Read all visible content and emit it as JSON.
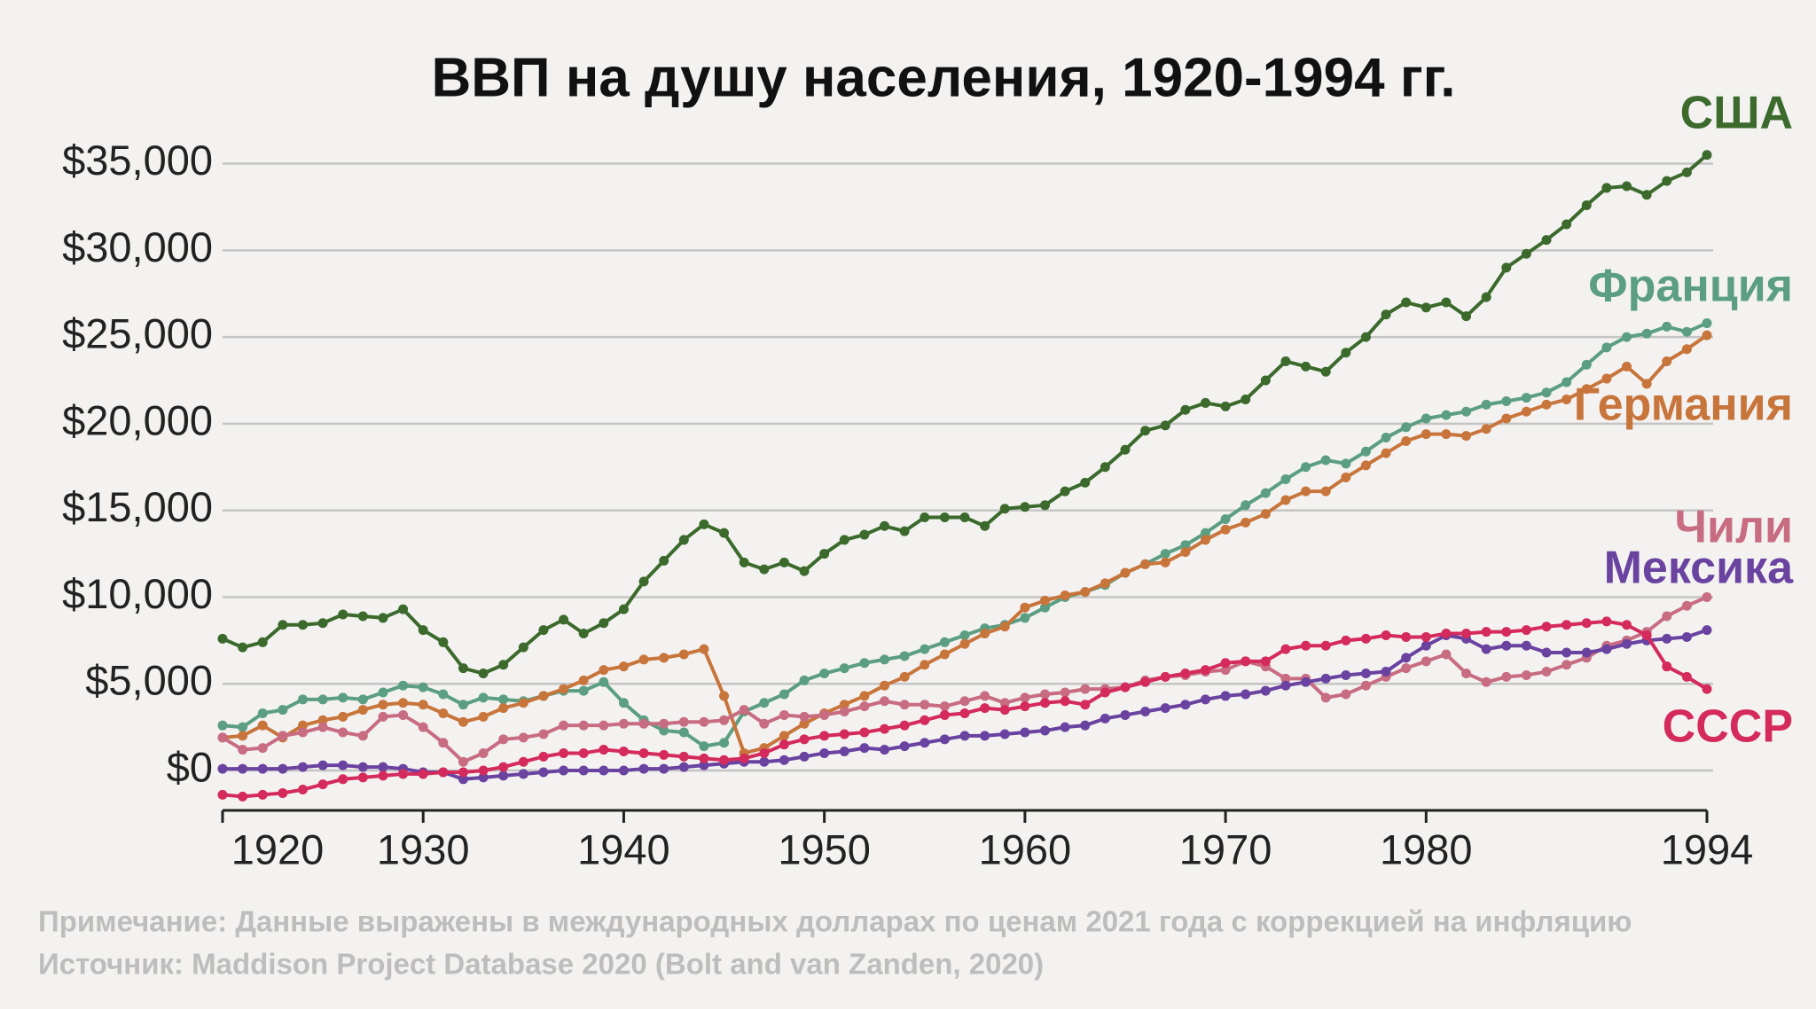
{
  "chart_data": {
    "type": "line",
    "title": "ВВП на душу населения, 1920-1994 гг.",
    "note": "Примечание: Данные выражены в международных долларах по ценам 2021 года с коррекцией на инфляцию",
    "source": "Источник: Maddison Project Database 2020 (Bolt and van Zanden, 2020)",
    "x": [
      1920,
      1921,
      1922,
      1923,
      1924,
      1925,
      1926,
      1927,
      1928,
      1929,
      1930,
      1931,
      1932,
      1933,
      1934,
      1935,
      1936,
      1937,
      1938,
      1939,
      1940,
      1941,
      1942,
      1943,
      1944,
      1945,
      1946,
      1947,
      1948,
      1949,
      1950,
      1951,
      1952,
      1953,
      1954,
      1955,
      1956,
      1957,
      1958,
      1959,
      1960,
      1961,
      1962,
      1963,
      1964,
      1965,
      1966,
      1967,
      1968,
      1969,
      1970,
      1971,
      1972,
      1973,
      1974,
      1975,
      1976,
      1977,
      1978,
      1979,
      1980,
      1981,
      1982,
      1983,
      1984,
      1985,
      1986,
      1987,
      1988,
      1989,
      1990,
      1991,
      1992,
      1993,
      1994
    ],
    "xlim": [
      1920,
      1994
    ],
    "xticks": [
      1920,
      1930,
      1940,
      1950,
      1960,
      1970,
      1980,
      1994
    ],
    "ylim": [
      -2300,
      36000
    ],
    "yticks": [
      {
        "value": 0,
        "label": "$0"
      },
      {
        "value": 5000,
        "label": "$5,000"
      },
      {
        "value": 10000,
        "label": "$10,000"
      },
      {
        "value": 15000,
        "label": "$15,000"
      },
      {
        "value": 20000,
        "label": "$20,000"
      },
      {
        "value": 25000,
        "label": "$25,000"
      },
      {
        "value": 30000,
        "label": "$30,000"
      },
      {
        "value": 35000,
        "label": "$35,000"
      }
    ],
    "grid": true,
    "series": [
      {
        "name": "США",
        "color": "#3b6a2c",
        "values": [
          7600,
          7100,
          7400,
          8400,
          8400,
          8500,
          9000,
          8900,
          8800,
          9300,
          8100,
          7400,
          5900,
          5600,
          6100,
          7100,
          8100,
          8700,
          7900,
          8500,
          9300,
          10900,
          12100,
          13300,
          14200,
          13700,
          12000,
          11600,
          12000,
          11500,
          12500,
          13300,
          13600,
          14100,
          13800,
          14600,
          14600,
          14600,
          14100,
          15100,
          15200,
          15300,
          16100,
          16600,
          17500,
          18500,
          19600,
          19900,
          20800,
          21200,
          21000,
          21400,
          22500,
          23600,
          23300,
          23000,
          24100,
          25000,
          26300,
          27000,
          26700,
          27000,
          26200,
          27300,
          29000,
          29800,
          30600,
          31500,
          32600,
          33600,
          33700,
          33200,
          34000,
          34500,
          35500
        ]
      },
      {
        "name": "Франция",
        "color": "#5b9e82",
        "values": [
          2600,
          2500,
          3300,
          3500,
          4100,
          4100,
          4200,
          4100,
          4500,
          4900,
          4800,
          4400,
          3800,
          4200,
          4100,
          4000,
          4300,
          4600,
          4600,
          5100,
          3900,
          2900,
          2300,
          2200,
          1400,
          1600,
          3400,
          3900,
          4400,
          5200,
          5600,
          5900,
          6200,
          6400,
          6600,
          7000,
          7400,
          7800,
          8200,
          8400,
          8800,
          9400,
          10000,
          10300,
          10700,
          11400,
          11900,
          12500,
          13000,
          13700,
          14500,
          15300,
          16000,
          16800,
          17500,
          17900,
          17700,
          18400,
          19200,
          19800,
          20300,
          20500,
          20700,
          21100,
          21300,
          21500,
          21800,
          22400,
          23400,
          24400,
          25000,
          25200,
          25600,
          25300,
          25800
        ]
      },
      {
        "name": "Германия",
        "color": "#c8753c",
        "values": [
          1900,
          2000,
          2600,
          1900,
          2600,
          2900,
          3100,
          3500,
          3800,
          3900,
          3800,
          3300,
          2800,
          3100,
          3600,
          3900,
          4300,
          4700,
          5200,
          5800,
          6000,
          6400,
          6500,
          6700,
          7000,
          4300,
          1000,
          1300,
          2000,
          2700,
          3300,
          3800,
          4300,
          4900,
          5400,
          6100,
          6700,
          7300,
          7900,
          8300,
          9400,
          9800,
          10100,
          10300,
          10800,
          11400,
          11900,
          12000,
          12600,
          13300,
          13900,
          14300,
          14800,
          15600,
          16100,
          16100,
          16900,
          17600,
          18300,
          19000,
          19400,
          19400,
          19300,
          19700,
          20300,
          20700,
          21100,
          21400,
          22000,
          22600,
          23300,
          22300,
          23600,
          24300,
          25100
        ]
      },
      {
        "name": "Чили",
        "color": "#c86c82",
        "values": [
          1900,
          1200,
          1300,
          2000,
          2200,
          2500,
          2200,
          2000,
          3100,
          3200,
          2500,
          1600,
          500,
          1000,
          1800,
          1900,
          2100,
          2600,
          2600,
          2600,
          2700,
          2700,
          2700,
          2800,
          2800,
          2900,
          3500,
          2700,
          3200,
          3100,
          3200,
          3400,
          3700,
          4000,
          3800,
          3800,
          3700,
          4000,
          4300,
          3900,
          4200,
          4400,
          4500,
          4700,
          4700,
          4800,
          5200,
          5400,
          5500,
          5700,
          5800,
          6300,
          6000,
          5300,
          5300,
          4200,
          4400,
          4900,
          5400,
          5900,
          6300,
          6700,
          5600,
          5100,
          5400,
          5500,
          5700,
          6100,
          6500,
          7200,
          7500,
          8000,
          8900,
          9500,
          10000
        ]
      },
      {
        "name": "Мексика",
        "color": "#6a42a0",
        "values": [
          100,
          100,
          100,
          100,
          200,
          300,
          300,
          200,
          200,
          100,
          -100,
          -100,
          -500,
          -400,
          -300,
          -200,
          -100,
          0,
          0,
          0,
          0,
          100,
          100,
          200,
          300,
          400,
          500,
          500,
          600,
          800,
          1000,
          1100,
          1300,
          1200,
          1400,
          1600,
          1800,
          2000,
          2000,
          2100,
          2200,
          2300,
          2500,
          2600,
          3000,
          3200,
          3400,
          3600,
          3800,
          4100,
          4300,
          4400,
          4600,
          4900,
          5100,
          5300,
          5500,
          5600,
          5700,
          6500,
          7200,
          7800,
          7600,
          7000,
          7200,
          7200,
          6800,
          6800,
          6800,
          7000,
          7300,
          7500,
          7600,
          7700,
          8100
        ]
      },
      {
        "name": "СССР",
        "color": "#d42a5c",
        "values": [
          -1400,
          -1500,
          -1400,
          -1300,
          -1100,
          -800,
          -500,
          -400,
          -300,
          -200,
          -200,
          -100,
          -100,
          0,
          200,
          500,
          800,
          1000,
          1000,
          1200,
          1100,
          1000,
          900,
          800,
          700,
          600,
          700,
          1000,
          1500,
          1800,
          2000,
          2100,
          2200,
          2400,
          2600,
          2900,
          3200,
          3300,
          3600,
          3500,
          3700,
          3900,
          4000,
          3800,
          4500,
          4800,
          5100,
          5400,
          5600,
          5800,
          6200,
          6300,
          6300,
          7000,
          7200,
          7200,
          7500,
          7600,
          7800,
          7700,
          7700,
          7900,
          7900,
          8000,
          8000,
          8100,
          8300,
          8400,
          8500,
          8600,
          8400,
          7800,
          6000,
          5400,
          4700
        ]
      }
    ]
  }
}
